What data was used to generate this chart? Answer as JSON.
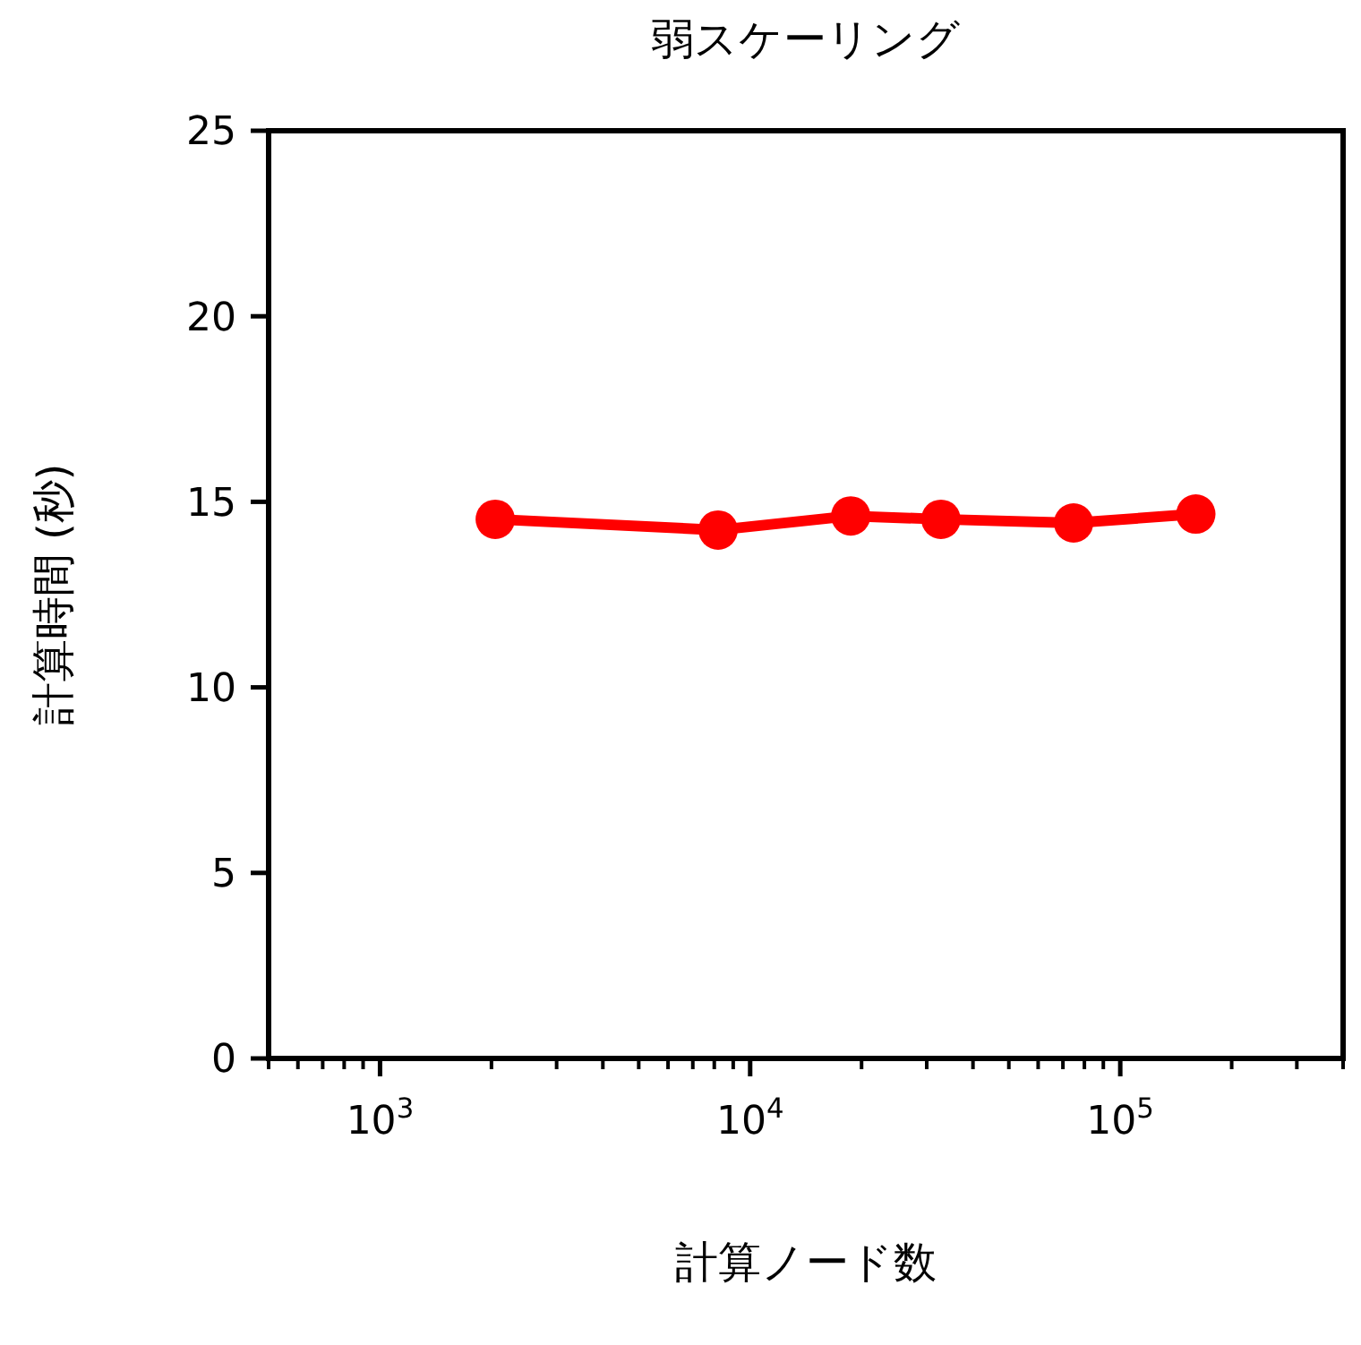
{
  "chart_data": {
    "type": "line",
    "title": "弱スケーリング",
    "xlabel": "計算ノード数",
    "ylabel": "計算時間 (秒)",
    "x": [
      2048,
      8192,
      18700,
      32768,
      74800,
      160000
    ],
    "series": [
      {
        "color": "#ff0000",
        "values": [
          14.53,
          14.24,
          14.62,
          14.53,
          14.43,
          14.67
        ]
      }
    ],
    "log": "x",
    "marker": "circle",
    "line_style": "solid",
    "xlim": [
      500,
      400000
    ],
    "xticks": [
      {
        "value": 500,
        "label": null
      },
      {
        "value": 600,
        "label": null
      },
      {
        "value": 700,
        "label": null
      },
      {
        "value": 800,
        "label": null
      },
      {
        "value": 900,
        "label": null
      },
      {
        "value": 1000,
        "label": "10$^{3}$"
      },
      {
        "value": 2000,
        "label": null
      },
      {
        "value": 3000,
        "label": null
      },
      {
        "value": 4000,
        "label": null
      },
      {
        "value": 5000,
        "label": null
      },
      {
        "value": 6000,
        "label": null
      },
      {
        "value": 7000,
        "label": null
      },
      {
        "value": 8000,
        "label": null
      },
      {
        "value": 9000,
        "label": null
      },
      {
        "value": 10000,
        "label": "10$^{4}$"
      },
      {
        "value": 20000,
        "label": null
      },
      {
        "value": 30000,
        "label": null
      },
      {
        "value": 40000,
        "label": null
      },
      {
        "value": 50000,
        "label": null
      },
      {
        "value": 60000,
        "label": null
      },
      {
        "value": 70000,
        "label": null
      },
      {
        "value": 80000,
        "label": null
      },
      {
        "value": 90000,
        "label": null
      },
      {
        "value": 100000,
        "label": "10$^{5}$"
      },
      {
        "value": 200000,
        "label": null
      },
      {
        "value": 300000,
        "label": null
      },
      {
        "value": 400000,
        "label": null
      }
    ],
    "ylim": [
      0,
      25
    ],
    "yticks": [
      0,
      5,
      10,
      15,
      20,
      25
    ]
  }
}
